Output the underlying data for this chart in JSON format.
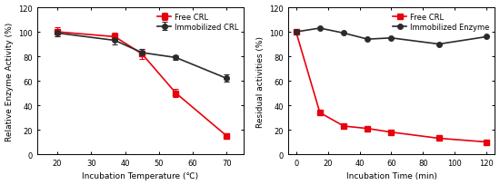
{
  "left": {
    "free_x": [
      20,
      37,
      45,
      55,
      70
    ],
    "free_y": [
      100,
      96,
      82,
      50,
      15
    ],
    "free_yerr": [
      4,
      3,
      4,
      3,
      2
    ],
    "immo_x": [
      20,
      37,
      45,
      55,
      70
    ],
    "immo_y": [
      99,
      93,
      83,
      79,
      62
    ],
    "immo_yerr": [
      3,
      3,
      3,
      2,
      3
    ],
    "xlabel": "Incubation Temperature (℃)",
    "ylabel": "Relative Enzyme Activity (%)",
    "xlim": [
      14,
      75
    ],
    "ylim": [
      0,
      120
    ],
    "xticks": [
      20,
      30,
      40,
      50,
      60,
      70
    ],
    "yticks": [
      0,
      20,
      40,
      60,
      80,
      100,
      120
    ],
    "legend1": "Free CRL",
    "legend2": "Immobilized CRL"
  },
  "right": {
    "free_x": [
      0,
      15,
      30,
      45,
      60,
      90,
      120
    ],
    "free_y": [
      100,
      34,
      23,
      21,
      18,
      13,
      10
    ],
    "immo_x": [
      0,
      15,
      30,
      45,
      60,
      90,
      120
    ],
    "immo_y": [
      100,
      103,
      99,
      94,
      95,
      90,
      96
    ],
    "xlabel": "Incubation Time (min)",
    "ylabel": "Residual activities (%)",
    "xlim": [
      -5,
      125
    ],
    "ylim": [
      0,
      120
    ],
    "xticks": [
      0,
      20,
      40,
      60,
      80,
      100,
      120
    ],
    "yticks": [
      0,
      20,
      40,
      60,
      80,
      100,
      120
    ],
    "legend1": "Free CRL",
    "legend2": "Immobilized Enzyme"
  },
  "free_color": "#e8000d",
  "immo_color": "#2b2b2b",
  "marker_free": "s",
  "marker_immo": "o",
  "markersize": 4,
  "linewidth": 1.2,
  "capsize": 2.5,
  "bg_color": "#ffffff"
}
